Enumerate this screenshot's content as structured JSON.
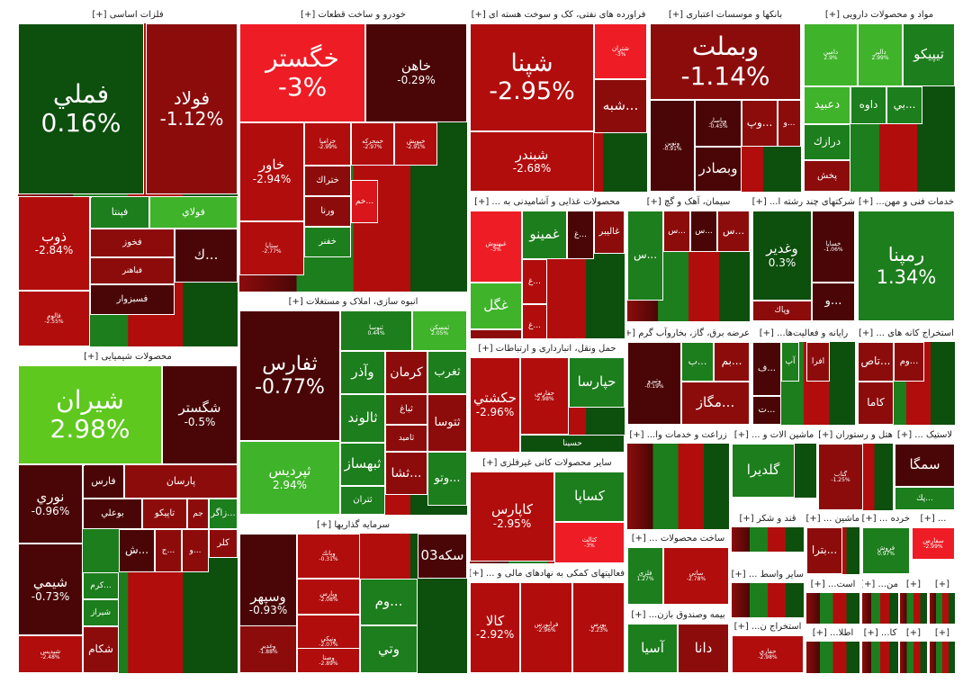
{
  "colors": {
    "dg": "#0d4f0d",
    "g": "#1c7e1c",
    "lg": "#3fb32a",
    "bg": "#5fc81f",
    "dr": "#4a0606",
    "r": "#8c0c0c",
    "mr": "#b10d0d",
    "br": "#d8161b",
    "vr": "#ee1c25"
  },
  "sectors": [
    {
      "title": "فلزات اساسی [+]",
      "tiles": [
        {
          "sym": "فملي",
          "pct": "0.16%",
          "c": "dg",
          "big": true
        },
        {
          "sym": "فولاد",
          "pct": "-1.12%",
          "c": "r",
          "big": true
        },
        {
          "sym": "ذوب",
          "pct": "-2.84%",
          "c": "mr"
        },
        {
          "sym": "فپنتا",
          "c": "g"
        },
        {
          "sym": "فولاي",
          "c": "lg"
        },
        {
          "sym": "فخوز",
          "c": "r"
        },
        {
          "sym": "فباهنر",
          "c": "r"
        },
        {
          "sym": "فسبزوار",
          "c": "dr"
        },
        {
          "sym": "فالوم",
          "pct": "-2.55%",
          "c": "mr",
          "tiny": true
        },
        {
          "sym": "فجهان",
          "pct": "2.91%",
          "c": "lg",
          "tiny": true
        },
        {
          "sym": "ك...",
          "c": "dr"
        }
      ]
    },
    {
      "title": "خودرو و ساخت قطعات [+]",
      "tiles": [
        {
          "sym": "خگستر",
          "pct": "-3%",
          "c": "vr",
          "big": true
        },
        {
          "sym": "خاهن",
          "pct": "-0.29%",
          "c": "dr"
        },
        {
          "sym": "خاور",
          "pct": "-2.94%",
          "c": "mr"
        },
        {
          "sym": "ختراك",
          "c": "r"
        },
        {
          "sym": "ورنا",
          "c": "r"
        },
        {
          "sym": "خفنر",
          "c": "g"
        },
        {
          "sym": "خم...",
          "c": "br"
        },
        {
          "sym": "خزاميا",
          "pct": "-2.99%",
          "c": "mr",
          "tiny": true
        },
        {
          "sym": "خمحركه",
          "pct": "-2.97%",
          "c": "mr",
          "tiny": true
        },
        {
          "sym": "خپويش",
          "pct": "-2.91%",
          "c": "mr",
          "tiny": true
        },
        {
          "sym": "ستايا",
          "pct": "-2.77%",
          "c": "mr",
          "tiny": true
        }
      ]
    },
    {
      "title": "فراورده های نفتی، کک و سوخت هسته ای [+]",
      "tiles": [
        {
          "sym": "شپنا",
          "pct": "-2.95%",
          "c": "mr",
          "big": true
        },
        {
          "sym": "شبندر",
          "pct": "-2.68%",
          "c": "mr"
        },
        {
          "sym": "شتران",
          "pct": "-3%",
          "c": "vr",
          "tiny": true
        },
        {
          "sym": "شبه...",
          "c": "r"
        }
      ]
    },
    {
      "title": "بانکها و موسسات اعتباری [+]",
      "tiles": [
        {
          "sym": "وبملت",
          "pct": "-1.14%",
          "c": "r",
          "big": true
        },
        {
          "sym": "ونوين",
          "pct": "-0.91%",
          "c": "dr",
          "tiny": true
        },
        {
          "sym": "وپاسار",
          "pct": "-0.45%",
          "c": "dr",
          "tiny": true
        },
        {
          "sym": "وپ...",
          "c": "r"
        },
        {
          "sym": "و...",
          "c": "r"
        },
        {
          "sym": "وبصادر",
          "c": "dr"
        }
      ]
    },
    {
      "title": "مواد و محصولات دارویی [+]",
      "tiles": [
        {
          "sym": "تيپيكو",
          "c": "g"
        },
        {
          "sym": "دامين",
          "pct": "2.9%",
          "c": "lg",
          "tiny": true
        },
        {
          "sym": "دالبر",
          "pct": "2.99%",
          "c": "lg",
          "tiny": true
        },
        {
          "sym": "دعبيد",
          "c": "lg"
        },
        {
          "sym": "داوه",
          "c": "g"
        },
        {
          "sym": "درازك",
          "c": "g"
        },
        {
          "sym": "پخش",
          "c": "r"
        },
        {
          "sym": "بي...",
          "c": "g"
        }
      ]
    },
    {
      "title": "محصولات شیمیایی [+]",
      "tiles": [
        {
          "sym": "شيران",
          "pct": "2.98%",
          "c": "bg",
          "big": true
        },
        {
          "sym": "شگستر",
          "pct": "-0.5%",
          "c": "dr"
        },
        {
          "sym": "نوري",
          "pct": "-0.96%",
          "c": "dr"
        },
        {
          "sym": "شيمي",
          "pct": "-0.73%",
          "c": "dr"
        },
        {
          "sym": "پارسان",
          "c": "r"
        },
        {
          "sym": "فارس",
          "c": "dr"
        },
        {
          "sym": "بوعلي",
          "c": "dr"
        },
        {
          "sym": "تاپيكو",
          "c": "r"
        },
        {
          "sym": "جم",
          "c": "r"
        },
        {
          "sym": "زاگر...",
          "c": "g"
        },
        {
          "sym": "كلر",
          "c": "r"
        },
        {
          "sym": "كرم...",
          "c": "g"
        },
        {
          "sym": "شيراز",
          "c": "g"
        },
        {
          "sym": "شكام",
          "c": "r"
        },
        {
          "sym": "شاراك",
          "pct": "-0.35%",
          "c": "r",
          "tiny": true
        },
        {
          "sym": "شپديس",
          "pct": "-2.48%",
          "c": "mr",
          "tiny": true
        },
        {
          "sym": "ش...",
          "c": "dr"
        },
        {
          "sym": "ج...",
          "c": "r"
        },
        {
          "sym": "و...",
          "c": "r"
        }
      ]
    },
    {
      "title": "انبوه سازی، املاک و مستغلات [+]",
      "tiles": [
        {
          "sym": "ثفارس",
          "pct": "-0.77%",
          "c": "dr",
          "big": true
        },
        {
          "sym": "ثپرديس",
          "pct": "2.94%",
          "c": "lg"
        },
        {
          "sym": "ثنوسا",
          "pct": "0.44%",
          "c": "g",
          "tiny": true
        },
        {
          "sym": "ثمسكن",
          "pct": "2.05%",
          "c": "lg",
          "tiny": true
        },
        {
          "sym": "وآذر",
          "c": "g"
        },
        {
          "sym": "كرمان",
          "c": "r"
        },
        {
          "sym": "ثغرب",
          "c": "g"
        },
        {
          "sym": "ثالوند",
          "c": "g"
        },
        {
          "sym": "ثباغ",
          "c": "r"
        },
        {
          "sym": "ثاميد",
          "c": "r"
        },
        {
          "sym": "ثتوسا",
          "c": "r"
        },
        {
          "sym": "ثبهساز",
          "c": "g"
        },
        {
          "sym": "ثتران",
          "c": "g"
        },
        {
          "sym": "ثشا...",
          "c": "r"
        },
        {
          "sym": "وتو...",
          "c": "g"
        }
      ]
    },
    {
      "title": "سرمایه گذاریها [+]",
      "tiles": [
        {
          "sym": "وسپهر",
          "pct": "-0.93%",
          "c": "dr"
        },
        {
          "sym": "وغدير",
          "pct": "-1.88%",
          "c": "r",
          "tiny": true
        },
        {
          "sym": "وبانك",
          "pct": "-0.31%",
          "c": "mr",
          "tiny": true
        },
        {
          "sym": "وپارس",
          "pct": "-2.08%",
          "c": "mr",
          "tiny": true
        },
        {
          "sym": "ونيكي",
          "pct": "-2.07%",
          "c": "mr",
          "tiny": true
        },
        {
          "sym": "وصنا",
          "pct": "-2.89%",
          "c": "mr",
          "tiny": true
        },
        {
          "sym": "سكه03",
          "c": "dr"
        },
        {
          "sym": "وتي",
          "c": "g"
        },
        {
          "sym": "وم...",
          "c": "g"
        }
      ]
    },
    {
      "title": "محصولات غذایی و آشامیدنی به ... [+]",
      "tiles": [
        {
          "sym": "غاليبر",
          "c": "r"
        },
        {
          "sym": "غمينو",
          "c": "g"
        },
        {
          "sym": "غ...",
          "c": "dr"
        },
        {
          "sym": "غبهنوش",
          "pct": "-3%",
          "c": "vr",
          "tiny": true
        },
        {
          "sym": "غگل",
          "c": "lg"
        },
        {
          "sym": "غديس",
          "c": "r"
        },
        {
          "sym": "غ...",
          "c": "mr"
        },
        {
          "sym": "غ...",
          "c": "mr"
        }
      ]
    },
    {
      "title": "حمل ونقل، انبارداری و ارتباطات [+]",
      "tiles": [
        {
          "sym": "حكشتي",
          "pct": "-2.96%",
          "c": "mr"
        },
        {
          "sym": "حفارس",
          "pct": "-2.98%",
          "c": "mr",
          "tiny": true
        },
        {
          "sym": "حپارسا",
          "c": "g"
        },
        {
          "sym": "حسينا",
          "c": "dg"
        }
      ]
    },
    {
      "title": "سایر محصولات کانی غیرفلزی [+]",
      "tiles": [
        {
          "sym": "كاپارس",
          "pct": "-2.95%",
          "c": "mr"
        },
        {
          "sym": "كسرا",
          "pct": "-2.97%",
          "c": "mr",
          "tiny": true
        },
        {
          "sym": "كساپا",
          "c": "g"
        },
        {
          "sym": "كثالث",
          "pct": "-3%",
          "c": "vr",
          "tiny": true
        }
      ]
    },
    {
      "title": "فعالیتهای کمکی به نهادهای مالی و ... [+]",
      "tiles": [
        {
          "sym": "كالا",
          "pct": "-2.92%",
          "c": "mr"
        },
        {
          "sym": "فرابورس",
          "pct": "-2.96%",
          "c": "mr",
          "tiny": true
        },
        {
          "sym": "بورس",
          "pct": "-2.23%",
          "c": "mr",
          "tiny": true
        }
      ]
    },
    {
      "title": "سیمان، آهک و گچ [+]",
      "tiles": [
        {
          "sym": "س...",
          "c": "r"
        },
        {
          "sym": "س...",
          "c": "dr"
        },
        {
          "sym": "س...",
          "c": "r"
        },
        {
          "sym": "س...",
          "c": "g"
        }
      ]
    },
    {
      "title": "شرکتهای چند رشته ا... [+]",
      "tiles": [
        {
          "sym": "وغدير",
          "pct": "0.3%",
          "c": "dg"
        },
        {
          "sym": "خساپا",
          "pct": "-1.06%",
          "c": "dr",
          "tiny": true
        },
        {
          "sym": "وپاك",
          "c": "r"
        },
        {
          "sym": "و...",
          "c": "dr"
        }
      ]
    },
    {
      "title": "خدمات فنی و مهن... [+]",
      "tiles": [
        {
          "sym": "رمپنا",
          "pct": "1.34%",
          "c": "g",
          "big": true
        }
      ]
    },
    {
      "title": "عرضه برق، گاز، بخاروآب گرم [+]",
      "tiles": [
        {
          "sym": "وتيرو",
          "pct": "-0.19%",
          "c": "dr",
          "tiny": true
        },
        {
          "sym": "بم...",
          "c": "r"
        },
        {
          "sym": "ب...",
          "c": "g"
        },
        {
          "sym": "مگاز...",
          "c": "r"
        }
      ]
    },
    {
      "title": "رایانه و فعالیت‌ها... [+]",
      "tiles": [
        {
          "sym": "ف...",
          "c": "dr"
        },
        {
          "sym": "آپ",
          "c": "g"
        },
        {
          "sym": "افرا",
          "c": "r"
        },
        {
          "sym": "ت...",
          "c": "dr"
        }
      ]
    },
    {
      "title": "استخراج کانه های ... [+]",
      "tiles": [
        {
          "sym": "تاص...",
          "c": "r"
        },
        {
          "sym": "كاما",
          "c": "r"
        },
        {
          "sym": "وم...",
          "c": "r"
        }
      ]
    },
    {
      "title": "زراعت و خدمات وا... [+]",
      "tiles": []
    },
    {
      "title": "ماشین الات و ... [+]",
      "tiles": [
        {
          "sym": "گلديرا",
          "c": "g"
        }
      ]
    },
    {
      "title": "هتل و رستوران [+]",
      "tiles": [
        {
          "sym": "گتاب",
          "pct": "-1.25%",
          "c": "r",
          "tiny": true
        }
      ]
    },
    {
      "title": "لاستیک ... [+]",
      "tiles": [
        {
          "sym": "سمگا",
          "c": "dr"
        },
        {
          "sym": "پك...",
          "c": "g"
        }
      ]
    },
    {
      "title": "ساخت محصولات ... [+]",
      "tiles": [
        {
          "sym": "فلزي",
          "pct": "1.27%",
          "c": "g",
          "tiny": true
        },
        {
          "sym": "ساتي",
          "pct": "-2.78%",
          "c": "mr",
          "tiny": true
        }
      ]
    },
    {
      "title": "قند و شکر [+]",
      "tiles": []
    },
    {
      "title": "ماشین ... [+]",
      "tiles": [
        {
          "sym": "بترا...",
          "c": "r"
        }
      ]
    },
    {
      "title": "خرده ... [+]",
      "tiles": [
        {
          "sym": "فروش",
          "pct": "0.97%",
          "c": "g",
          "tiny": true
        }
      ]
    },
    {
      "title": "... [+]",
      "tiles": [
        {
          "sym": "سفارس",
          "pct": "-2.99%",
          "c": "vr",
          "tiny": true
        }
      ]
    },
    {
      "title": "بیمه وصندوق بازن... [+]",
      "tiles": [
        {
          "sym": "آسيا",
          "c": "g"
        },
        {
          "sym": "دانا",
          "c": "r"
        }
      ]
    },
    {
      "title": "سایر واسط ... [+]",
      "tiles": []
    },
    {
      "title": "استخراج ن... [+]",
      "tiles": [
        {
          "sym": "حفاري",
          "pct": "-2.98%",
          "c": "mr",
          "tiny": true
        }
      ]
    },
    {
      "title": "است... [+]",
      "tiles": []
    },
    {
      "title": "من... [+]",
      "tiles": []
    },
    {
      "title": "[+]",
      "tiles": []
    },
    {
      "title": "[+]",
      "tiles": []
    },
    {
      "title": "اطلا... [+]",
      "tiles": []
    },
    {
      "title": "كا... [+]",
      "tiles": []
    },
    {
      "title": "[+]",
      "tiles": []
    },
    {
      "title": "[+]",
      "tiles": []
    }
  ],
  "chart_data": {
    "type": "heatmap",
    "values": [
      {
        "sector": "فلزات اساسی",
        "symbol": "فملي",
        "change_pct": 0.16
      },
      {
        "sector": "فلزات اساسی",
        "symbol": "فولاد",
        "change_pct": -1.12
      },
      {
        "sector": "فلزات اساسی",
        "symbol": "ذوب",
        "change_pct": -2.84
      },
      {
        "sector": "فلزات اساسی",
        "symbol": "فالوم",
        "change_pct": -2.55
      },
      {
        "sector": "خودرو و ساخت قطعات",
        "symbol": "خگستر",
        "change_pct": -3
      },
      {
        "sector": "خودرو و ساخت قطعات",
        "symbol": "خاهن",
        "change_pct": -0.29
      },
      {
        "sector": "خودرو و ساخت قطعات",
        "symbol": "خاور",
        "change_pct": -2.94
      },
      {
        "sector": "فراورده های نفتی",
        "symbol": "شپنا",
        "change_pct": -2.95
      },
      {
        "sector": "فراورده های نفتی",
        "symbol": "شبندر",
        "change_pct": -2.68
      },
      {
        "sector": "بانکها و موسسات اعتباری",
        "symbol": "وبملت",
        "change_pct": -1.14
      },
      {
        "sector": "بانکها و موسسات اعتباری",
        "symbol": "ونوين",
        "change_pct": -0.91
      },
      {
        "sector": "محصولات شیمیایی",
        "symbol": "شيران",
        "change_pct": 2.98
      },
      {
        "sector": "محصولات شیمیایی",
        "symbol": "شگستر",
        "change_pct": -0.5
      },
      {
        "sector": "محصولات شیمیایی",
        "symbol": "نوري",
        "change_pct": -0.96
      },
      {
        "sector": "محصولات شیمیایی",
        "symbol": "شيمي",
        "change_pct": -0.73
      },
      {
        "sector": "انبوه سازی",
        "symbol": "ثفارس",
        "change_pct": -0.77
      },
      {
        "sector": "انبوه سازی",
        "symbol": "ثپرديس",
        "change_pct": 2.94
      },
      {
        "sector": "انبوه سازی",
        "symbol": "ثنوسا",
        "change_pct": 0.44
      },
      {
        "sector": "سرمایه گذاریها",
        "symbol": "وسپهر",
        "change_pct": -0.93
      },
      {
        "sector": "سرمایه گذاریها",
        "symbol": "وغدير",
        "change_pct": -1.88
      },
      {
        "sector": "محصولات غذایی",
        "symbol": "غبهنوش",
        "change_pct": -3
      },
      {
        "sector": "حمل ونقل",
        "symbol": "حكشتي",
        "change_pct": -2.96
      },
      {
        "sector": "حمل ونقل",
        "symbol": "حفارس",
        "change_pct": -2.98
      },
      {
        "sector": "سایر محصولات کانی غیرفلزی",
        "symbol": "كاپارس",
        "change_pct": -2.95
      },
      {
        "sector": "فعالیتهای کمکی",
        "symbol": "كالا",
        "change_pct": -2.92
      },
      {
        "sector": "شرکتهای چند رشته",
        "symbol": "وغدير",
        "change_pct": 0.3
      },
      {
        "sector": "شرکتهای چند رشته",
        "symbol": "خساپا",
        "change_pct": -1.06
      },
      {
        "sector": "خدمات فنی و مهندسی",
        "symbol": "رمپنا",
        "change_pct": 1.34
      },
      {
        "sector": "عرضه برق",
        "symbol": "وتيرو",
        "change_pct": -0.19
      },
      {
        "sector": "استخراج",
        "symbol": "حفاري",
        "change_pct": -2.98
      }
    ]
  }
}
